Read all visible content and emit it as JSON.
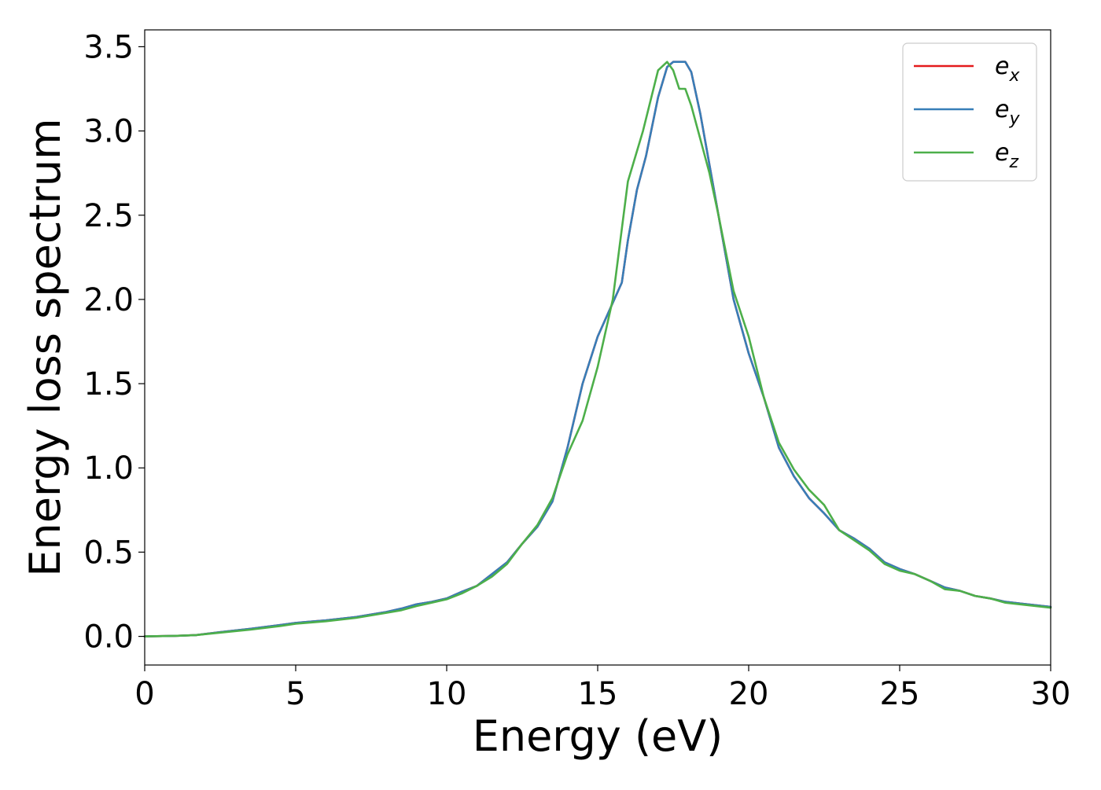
{
  "chart_data": {
    "type": "line",
    "xlabel": "Energy (eV)",
    "ylabel": "Energy loss spectrum",
    "xlim": [
      0,
      30
    ],
    "ylim": [
      -0.17,
      3.6
    ],
    "x_ticks": [
      "0",
      "5",
      "10",
      "15",
      "20",
      "25",
      "30"
    ],
    "y_ticks": [
      "0.0",
      "0.5",
      "1.0",
      "1.5",
      "2.0",
      "2.5",
      "3.0",
      "3.5"
    ],
    "grid": false,
    "legend_position": "top-right",
    "series": [
      {
        "name": "e_x",
        "label_base": "e",
        "label_sub": "x",
        "color": "#e41a1c",
        "x": [
          0,
          1,
          1.7,
          2.5,
          3.5,
          4.5,
          5,
          6,
          7,
          8,
          8.5,
          9,
          9.5,
          10,
          10.5,
          11,
          11.5,
          12,
          12.5,
          13,
          13.5,
          14,
          14.5,
          15,
          15.5,
          15.8,
          16,
          16.3,
          16.6,
          17,
          17.3,
          17.5,
          17.7,
          17.9,
          18.1,
          18.4,
          18.7,
          19,
          19.5,
          20,
          20.5,
          21,
          21.5,
          22,
          22.5,
          23,
          23.5,
          24,
          24.5,
          25,
          25.5,
          26,
          26.5,
          27,
          27.5,
          28,
          28.5,
          29,
          30
        ],
        "y": [
          0.0,
          0.003,
          0.008,
          0.025,
          0.045,
          0.068,
          0.08,
          0.095,
          0.115,
          0.145,
          0.165,
          0.19,
          0.205,
          0.225,
          0.265,
          0.3,
          0.37,
          0.44,
          0.55,
          0.65,
          0.8,
          1.12,
          1.5,
          1.78,
          1.98,
          2.1,
          2.35,
          2.65,
          2.85,
          3.2,
          3.38,
          3.41,
          3.41,
          3.41,
          3.35,
          3.1,
          2.8,
          2.5,
          2.0,
          1.68,
          1.42,
          1.12,
          0.95,
          0.82,
          0.73,
          0.63,
          0.58,
          0.52,
          0.44,
          0.4,
          0.37,
          0.33,
          0.29,
          0.27,
          0.24,
          0.225,
          0.205,
          0.195,
          0.175
        ]
      },
      {
        "name": "e_y",
        "label_base": "e",
        "label_sub": "y",
        "color": "#377eb8",
        "x": [
          0,
          1,
          1.7,
          2.5,
          3.5,
          4.5,
          5,
          6,
          7,
          8,
          8.5,
          9,
          9.5,
          10,
          10.5,
          11,
          11.5,
          12,
          12.5,
          13,
          13.5,
          14,
          14.5,
          15,
          15.5,
          15.8,
          16,
          16.3,
          16.6,
          17,
          17.3,
          17.5,
          17.7,
          17.9,
          18.1,
          18.4,
          18.7,
          19,
          19.5,
          20,
          20.5,
          21,
          21.5,
          22,
          22.5,
          23,
          23.5,
          24,
          24.5,
          25,
          25.5,
          26,
          26.5,
          27,
          27.5,
          28,
          28.5,
          29,
          30
        ],
        "y": [
          0.0,
          0.003,
          0.008,
          0.025,
          0.045,
          0.068,
          0.08,
          0.095,
          0.115,
          0.145,
          0.165,
          0.19,
          0.205,
          0.225,
          0.265,
          0.3,
          0.37,
          0.44,
          0.55,
          0.65,
          0.8,
          1.12,
          1.5,
          1.78,
          1.98,
          2.1,
          2.35,
          2.65,
          2.85,
          3.2,
          3.38,
          3.41,
          3.41,
          3.41,
          3.35,
          3.1,
          2.8,
          2.5,
          2.0,
          1.68,
          1.42,
          1.12,
          0.95,
          0.82,
          0.73,
          0.63,
          0.58,
          0.52,
          0.44,
          0.4,
          0.37,
          0.33,
          0.29,
          0.27,
          0.24,
          0.225,
          0.205,
          0.195,
          0.175
        ]
      },
      {
        "name": "e_z",
        "label_base": "e",
        "label_sub": "z",
        "color": "#4daf4a",
        "x": [
          0,
          1,
          1.7,
          2.5,
          3.5,
          4.5,
          5,
          6,
          7,
          8,
          8.5,
          9,
          9.5,
          10,
          10.5,
          11,
          11.5,
          12,
          12.5,
          13,
          13.5,
          14,
          14.5,
          15,
          15.5,
          16,
          16.5,
          17,
          17.3,
          17.5,
          17.7,
          17.9,
          18.1,
          18.4,
          18.7,
          19,
          19.5,
          20,
          20.5,
          21,
          21.5,
          22,
          22.5,
          23,
          23.5,
          24,
          24.5,
          25,
          25.5,
          26,
          26.5,
          27,
          27.5,
          28,
          28.5,
          29,
          30
        ],
        "y": [
          0.0,
          0.003,
          0.008,
          0.022,
          0.04,
          0.062,
          0.075,
          0.09,
          0.11,
          0.14,
          0.155,
          0.18,
          0.2,
          0.22,
          0.255,
          0.3,
          0.355,
          0.43,
          0.55,
          0.66,
          0.82,
          1.08,
          1.28,
          1.6,
          2.0,
          2.7,
          3.0,
          3.36,
          3.41,
          3.36,
          3.25,
          3.25,
          3.15,
          2.95,
          2.75,
          2.5,
          2.05,
          1.78,
          1.42,
          1.15,
          0.99,
          0.87,
          0.78,
          0.63,
          0.57,
          0.51,
          0.43,
          0.39,
          0.37,
          0.33,
          0.28,
          0.27,
          0.24,
          0.225,
          0.2,
          0.19,
          0.17
        ]
      }
    ]
  }
}
